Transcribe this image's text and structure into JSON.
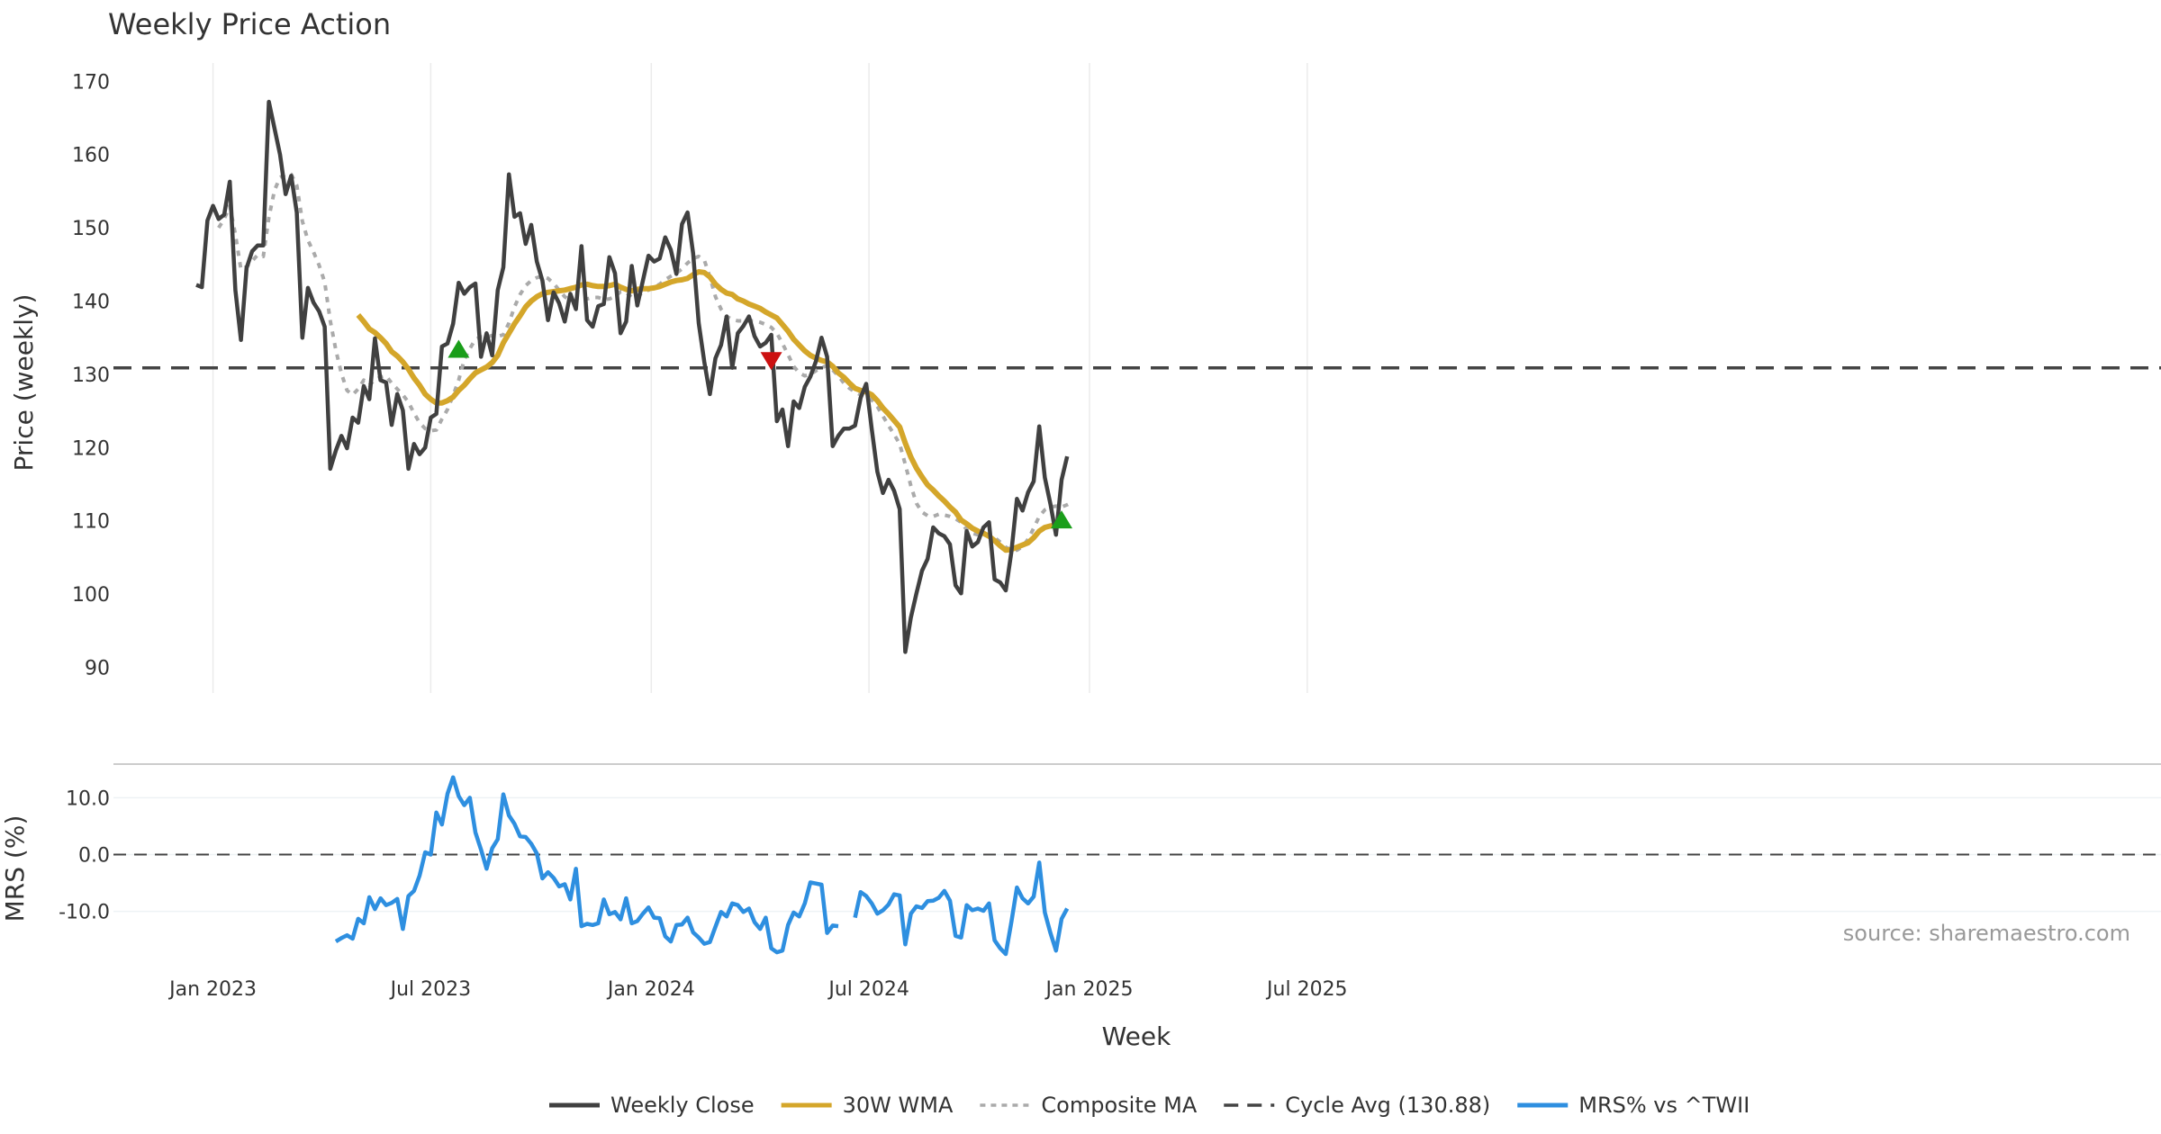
{
  "chart_data": {
    "type": "line",
    "title": "Weekly Price Action",
    "xlabel": "Week",
    "x_ticks": [
      "Jan 2023",
      "Jul 2023",
      "Jan 2024",
      "Jul 2024",
      "Jan 2025",
      "Jul 2025"
    ],
    "source": "source: sharemaestro.com",
    "panels": [
      {
        "name": "price",
        "ylabel": "Price (weekly)",
        "ylim": [
          86.5,
          172.5
        ],
        "y_ticks": [
          "90",
          "100",
          "110",
          "120",
          "130",
          "140",
          "150",
          "160",
          "170"
        ],
        "grid": "vertical",
        "reference_line": {
          "name": "Cycle Avg (130.88)",
          "value": 130.88,
          "color": "#444444"
        },
        "series": [
          {
            "name": "Weekly Close",
            "color": "#404040",
            "start_week": 0,
            "values": [
              142.2,
              141.9,
              151.0,
              153.0,
              151.2,
              151.8,
              156.3,
              141.5,
              134.7,
              144.5,
              146.8,
              147.6,
              147.6,
              167.2,
              163.6,
              160.0,
              154.6,
              157.1,
              152.1,
              135.0,
              141.8,
              139.8,
              138.6,
              136.5,
              117.1,
              119.6,
              121.6,
              119.9,
              124.1,
              123.4,
              128.4,
              126.6,
              134.9,
              129.2,
              128.9,
              123.1,
              127.3,
              125.1,
              117.1,
              120.5,
              119.1,
              120.0,
              124.1,
              124.6,
              133.8,
              134.2,
              136.9,
              142.5,
              141.0,
              141.9,
              142.4,
              132.4,
              135.6,
              132.6,
              141.5,
              144.6,
              157.3,
              151.5,
              152.0,
              147.8,
              150.4,
              145.4,
              142.8,
              137.4,
              141.2,
              139.7,
              137.2,
              141.0,
              138.9,
              147.5,
              137.4,
              136.5,
              139.3,
              139.6,
              146.0,
              143.8,
              135.6,
              137.2,
              144.8,
              139.4,
              142.8,
              146.2,
              145.4,
              145.8,
              148.7,
              147.0,
              143.7,
              150.5,
              152.1,
              146.5,
              137.0,
              131.7,
              127.3,
              132.2,
              134.0,
              137.9,
              130.9,
              135.6,
              136.6,
              137.9,
              135.2,
              133.8,
              134.3,
              135.4,
              123.6,
              125.2,
              120.2,
              126.3,
              125.4,
              128.3,
              129.7,
              131.8,
              135.0,
              132.4,
              120.2,
              121.6,
              122.6,
              122.6,
              123.0,
              126.8,
              128.7,
              122.5,
              116.7,
              113.8,
              115.6,
              114.1,
              111.6,
              92.1,
              96.8,
              100.1,
              103.2,
              104.8,
              109.1,
              108.3,
              107.9,
              106.8,
              101.2,
              100.1,
              108.6,
              106.5,
              107.1,
              109.1,
              109.8,
              102.0,
              101.6,
              100.5,
              105.7,
              113.0,
              111.4,
              113.9,
              115.4,
              122.9,
              115.9,
              112.3,
              108.1,
              115.6,
              118.8
            ]
          },
          {
            "name": "30W WMA",
            "color": "#D4A62A",
            "start_week": 29,
            "values": [
              138.1,
              137.2,
              136.2,
              135.7,
              135.0,
              134.2,
              133.1,
              132.5,
              131.7,
              130.7,
              129.5,
              128.5,
              127.3,
              126.6,
              126.1,
              126.1,
              126.4,
              126.9,
              127.8,
              128.5,
              129.4,
              130.2,
              130.6,
              131.0,
              131.6,
              132.6,
              134.3,
              135.6,
              136.9,
              138.0,
              139.2,
              140.0,
              140.6,
              141.0,
              141.2,
              141.3,
              141.4,
              141.5,
              141.7,
              141.9,
              142.2,
              142.3,
              142.1,
              142.0,
              142.0,
              142.1,
              142.3,
              141.9,
              141.6,
              141.4,
              141.6,
              141.7,
              141.7,
              141.8,
              142.0,
              142.3,
              142.6,
              142.8,
              142.9,
              143.1,
              143.6,
              144.0,
              143.9,
              143.3,
              142.3,
              141.6,
              141.1,
              140.9,
              140.3,
              140.0,
              139.6,
              139.3,
              139.0,
              138.5,
              138.1,
              137.7,
              136.8,
              135.9,
              134.8,
              134.0,
              133.2,
              132.6,
              132.2,
              131.9,
              131.7,
              131.1,
              130.2,
              129.6,
              128.8,
              128.1,
              127.8,
              127.6,
              127.2,
              126.4,
              125.4,
              124.6,
              123.7,
              122.8,
              120.6,
              118.7,
              117.2,
              116.0,
              114.9,
              114.2,
              113.4,
              112.7,
              111.9,
              111.2,
              110.1,
              109.6,
              109.0,
              108.6,
              108.3,
              107.9,
              107.3,
              106.6,
              106.0,
              106.1,
              106.4,
              106.7,
              107.0,
              107.7,
              108.6,
              109.1,
              109.3,
              109.4,
              110.2
            ]
          },
          {
            "name": "Composite MA",
            "color": "#AAAAAA",
            "start_week": 4,
            "values": [
              150.0,
              151.2,
              153.0,
              149.1,
              144.3,
              144.7,
              145.5,
              146.3,
              146.1,
              151.4,
              155.1,
              156.9,
              157.3,
              157.3,
              155.8,
              150.9,
              148.3,
              146.7,
              144.9,
              142.6,
              137.3,
              133.3,
              130.1,
              127.8,
              127.2,
              128.0,
              129.2,
              128.5,
              129.3,
              129.6,
              129.8,
              128.8,
              128.0,
              127.2,
              126.2,
              124.7,
              123.4,
              122.6,
              122.3,
              122.4,
              123.9,
              125.2,
              127.1,
              129.2,
              132.0,
              133.5,
              134.8,
              135.1,
              135.1,
              135.3,
              135.2,
              135.4,
              137.0,
              139.2,
              140.9,
              142.1,
              142.8,
              143.2,
              143.4,
              143.1,
              142.4,
              141.5,
              140.6,
              140.1,
              140.0,
              140.1,
              140.3,
              140.5,
              140.5,
              140.2,
              140.3,
              140.6,
              141.3,
              141.2,
              140.5,
              140.6,
              141.2,
              141.5,
              141.9,
              142.3,
              142.9,
              143.4,
              143.8,
              144.4,
              145.2,
              145.8,
              146.1,
              145.6,
              143.3,
              140.6,
              138.9,
              137.9,
              137.5,
              137.3,
              137.3,
              137.3,
              137.3,
              137.1,
              136.8,
              136.4,
              135.6,
              134.2,
              132.7,
              131.1,
              130.2,
              129.8,
              130.0,
              130.5,
              130.9,
              131.2,
              130.6,
              129.8,
              128.8,
              128.1,
              127.6,
              127.2,
              126.9,
              126.5,
              125.6,
              124.3,
              123.0,
              121.8,
              120.5,
              117.7,
              114.8,
              112.4,
              111.2,
              110.7,
              110.6,
              110.9,
              110.8,
              110.6,
              110.3,
              109.8,
              108.8,
              108.3,
              108.1,
              108.1,
              107.9,
              107.7,
              107.1,
              106.4,
              106.0,
              106.0,
              106.5,
              107.5,
              109.0,
              110.6,
              111.5,
              111.9,
              112.0,
              111.9,
              112.2,
              112.6
            ]
          }
        ],
        "signals": [
          {
            "type": "buy",
            "week": 47,
            "value": 133.5,
            "color": "#1A9E1A"
          },
          {
            "type": "sell",
            "week": 103,
            "value": 131.8,
            "color": "#CC1111"
          },
          {
            "type": "buy",
            "week": 155,
            "value": 110.2,
            "color": "#1A9E1A"
          }
        ]
      },
      {
        "name": "mrs",
        "ylabel": "MRS (%)",
        "ylim": [
          -17.5,
          14.5
        ],
        "y_ticks": [
          "10.0",
          "0.0",
          "-10.0"
        ],
        "reference_line": {
          "value": 0,
          "color": "#444444"
        },
        "series": [
          {
            "name": "MRS% vs ^TWII",
            "color": "#2E8FE0",
            "start_week": 25,
            "values": [
              -15.3,
              -14.7,
              -14.2,
              -14.8,
              -11.3,
              -12.1,
              -7.5,
              -9.6,
              -7.7,
              -8.9,
              -8.5,
              -7.8,
              -13.1,
              -7.3,
              -6.4,
              -3.7,
              0.4,
              0.0,
              7.4,
              5.3,
              10.7,
              13.6,
              10.3,
              8.7,
              10.0,
              3.9,
              0.9,
              -2.5,
              1.1,
              2.7,
              10.6,
              6.9,
              5.4,
              3.2,
              3.1,
              1.9,
              0.2,
              -4.2,
              -3.1,
              -4.1,
              -5.6,
              -5.2,
              -7.9,
              -2.5,
              -12.6,
              -12.2,
              -12.4,
              -12.1,
              -7.9,
              -10.5,
              -10.1,
              -11.4,
              -7.7,
              -12.1,
              -11.7,
              -10.4,
              -9.3,
              -11.1,
              -11.2,
              -14.4,
              -15.3,
              -12.4,
              -12.3,
              -11.1,
              -13.7,
              -14.6,
              -15.7,
              -15.4,
              -12.7,
              -10.1,
              -10.9,
              -8.6,
              -8.9,
              -10.1,
              -9.5,
              -11.9,
              -13.1,
              -11.1,
              -16.5,
              -17.2,
              -16.9,
              -12.4,
              -10.2,
              -10.9,
              -8.6,
              -4.9,
              -5.1,
              -5.3,
              -13.8,
              -12.5,
              -12.6,
              null,
              null,
              -11.1,
              -6.6,
              -7.3,
              -8.6,
              -10.4,
              -9.8,
              -8.8,
              -7.0,
              -7.2,
              -15.8,
              -10.4,
              -9.1,
              -9.4,
              -8.2,
              -8.1,
              -7.6,
              -6.4,
              -8.1,
              -14.3,
              -14.6,
              -8.9,
              -9.8,
              -9.5,
              -9.9,
              -8.6,
              -15.1,
              -16.5,
              -17.5,
              -11.9,
              -5.8,
              -7.7,
              -8.6,
              -7.4,
              -1.4,
              -10.2,
              -13.8,
              -16.9,
              -11.3,
              -9.5
            ]
          }
        ]
      }
    ],
    "legend": [
      {
        "label": "Weekly Close",
        "style": "solid",
        "color": "#404040"
      },
      {
        "label": "30W WMA",
        "style": "solid",
        "color": "#D4A62A"
      },
      {
        "label": "Composite MA",
        "style": "dotted",
        "color": "#AAAAAA"
      },
      {
        "label": "Cycle Avg (130.88)",
        "style": "dashed",
        "color": "#444444"
      },
      {
        "label": "MRS% vs ^TWII",
        "style": "solid",
        "color": "#2E8FE0"
      }
    ]
  }
}
